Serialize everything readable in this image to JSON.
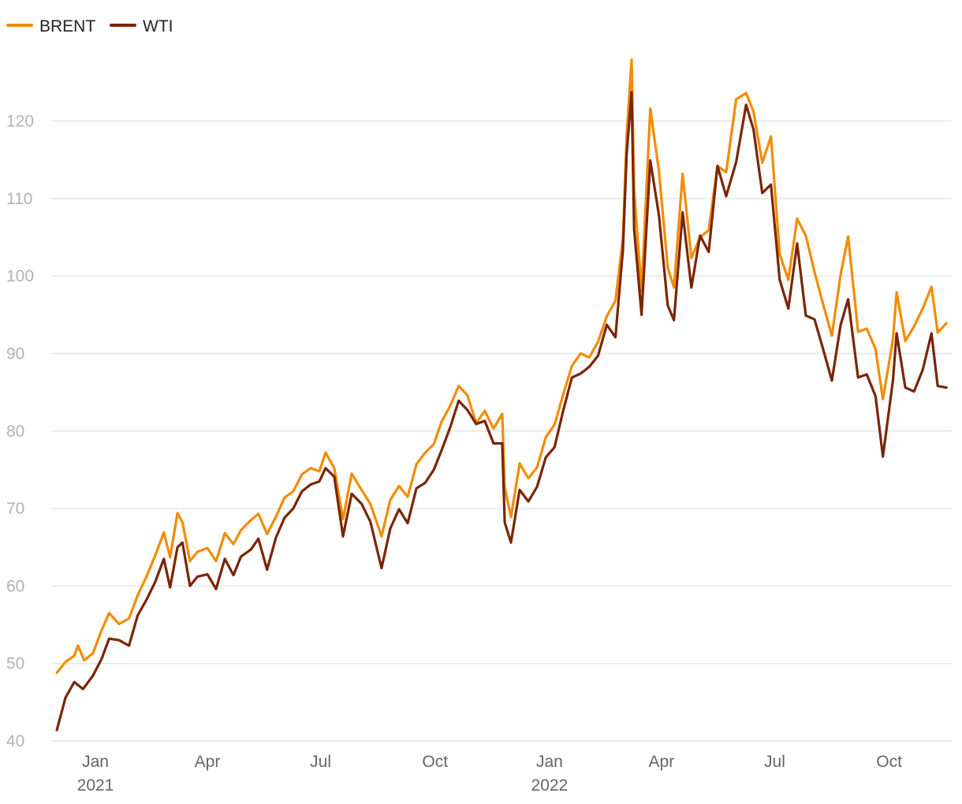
{
  "chart_data": {
    "type": "line",
    "title": "",
    "xlabel": "",
    "ylabel": "",
    "ylim": [
      40,
      128
    ],
    "yticks": [
      40,
      50,
      60,
      70,
      80,
      90,
      100,
      110,
      120
    ],
    "grid": true,
    "legend_placement": "top-left",
    "x_tick_labels": [
      {
        "date": "2021-01-01",
        "label": "Jan",
        "sublabel": "2021"
      },
      {
        "date": "2021-04-01",
        "label": "Apr",
        "sublabel": ""
      },
      {
        "date": "2021-07-01",
        "label": "Jul",
        "sublabel": ""
      },
      {
        "date": "2021-10-01",
        "label": "Oct",
        "sublabel": ""
      },
      {
        "date": "2022-01-01",
        "label": "Jan",
        "sublabel": "2022"
      },
      {
        "date": "2022-04-01",
        "label": "Apr",
        "sublabel": ""
      },
      {
        "date": "2022-07-01",
        "label": "Jul",
        "sublabel": ""
      },
      {
        "date": "2022-10-01",
        "label": "Oct",
        "sublabel": ""
      }
    ],
    "series": [
      {
        "name": "BRENT",
        "color": "#f28c00",
        "points": [
          [
            "2020-12-01",
            48.8
          ],
          [
            "2020-12-08",
            50.2
          ],
          [
            "2020-12-15",
            51.0
          ],
          [
            "2020-12-18",
            52.3
          ],
          [
            "2020-12-23",
            50.4
          ],
          [
            "2020-12-30",
            51.3
          ],
          [
            "2021-01-06",
            54.3
          ],
          [
            "2021-01-12",
            56.5
          ],
          [
            "2021-01-20",
            55.1
          ],
          [
            "2021-01-28",
            55.8
          ],
          [
            "2021-02-04",
            58.8
          ],
          [
            "2021-02-11",
            61.2
          ],
          [
            "2021-02-18",
            63.9
          ],
          [
            "2021-02-25",
            66.9
          ],
          [
            "2021-03-02",
            63.7
          ],
          [
            "2021-03-08",
            69.4
          ],
          [
            "2021-03-12",
            68.2
          ],
          [
            "2021-03-18",
            63.2
          ],
          [
            "2021-03-24",
            64.4
          ],
          [
            "2021-04-01",
            64.9
          ],
          [
            "2021-04-08",
            63.2
          ],
          [
            "2021-04-15",
            66.8
          ],
          [
            "2021-04-22",
            65.4
          ],
          [
            "2021-04-28",
            67.2
          ],
          [
            "2021-05-06",
            68.5
          ],
          [
            "2021-05-12",
            69.3
          ],
          [
            "2021-05-19",
            66.7
          ],
          [
            "2021-05-26",
            68.9
          ],
          [
            "2021-06-02",
            71.4
          ],
          [
            "2021-06-09",
            72.2
          ],
          [
            "2021-06-16",
            74.4
          ],
          [
            "2021-06-23",
            75.2
          ],
          [
            "2021-06-30",
            74.8
          ],
          [
            "2021-07-05",
            77.2
          ],
          [
            "2021-07-12",
            75.2
          ],
          [
            "2021-07-19",
            68.6
          ],
          [
            "2021-07-26",
            74.5
          ],
          [
            "2021-08-03",
            72.4
          ],
          [
            "2021-08-10",
            70.6
          ],
          [
            "2021-08-19",
            66.4
          ],
          [
            "2021-08-26",
            71.1
          ],
          [
            "2021-09-02",
            72.9
          ],
          [
            "2021-09-09",
            71.5
          ],
          [
            "2021-09-16",
            75.7
          ],
          [
            "2021-09-23",
            77.2
          ],
          [
            "2021-09-30",
            78.3
          ],
          [
            "2021-10-06",
            81.1
          ],
          [
            "2021-10-13",
            83.2
          ],
          [
            "2021-10-20",
            85.8
          ],
          [
            "2021-10-27",
            84.6
          ],
          [
            "2021-11-03",
            81.0
          ],
          [
            "2021-11-10",
            82.6
          ],
          [
            "2021-11-17",
            80.3
          ],
          [
            "2021-11-24",
            82.2
          ],
          [
            "2021-11-26",
            72.7
          ],
          [
            "2021-12-01",
            68.9
          ],
          [
            "2021-12-08",
            75.8
          ],
          [
            "2021-12-15",
            73.9
          ],
          [
            "2021-12-22",
            75.3
          ],
          [
            "2021-12-29",
            79.2
          ],
          [
            "2022-01-05",
            80.8
          ],
          [
            "2022-01-12",
            84.7
          ],
          [
            "2022-01-19",
            88.4
          ],
          [
            "2022-01-26",
            90.0
          ],
          [
            "2022-02-02",
            89.5
          ],
          [
            "2022-02-09",
            91.5
          ],
          [
            "2022-02-16",
            94.8
          ],
          [
            "2022-02-23",
            96.8
          ],
          [
            "2022-03-01",
            104.9
          ],
          [
            "2022-03-04",
            118.1
          ],
          [
            "2022-03-08",
            127.9
          ],
          [
            "2022-03-10",
            111.1
          ],
          [
            "2022-03-16",
            98.0
          ],
          [
            "2022-03-23",
            121.6
          ],
          [
            "2022-03-30",
            113.5
          ],
          [
            "2022-04-06",
            101.1
          ],
          [
            "2022-04-11",
            98.5
          ],
          [
            "2022-04-18",
            113.2
          ],
          [
            "2022-04-25",
            102.3
          ],
          [
            "2022-05-02",
            105.0
          ],
          [
            "2022-05-09",
            105.9
          ],
          [
            "2022-05-16",
            114.2
          ],
          [
            "2022-05-23",
            113.4
          ],
          [
            "2022-05-31",
            122.8
          ],
          [
            "2022-06-08",
            123.6
          ],
          [
            "2022-06-14",
            121.2
          ],
          [
            "2022-06-21",
            114.6
          ],
          [
            "2022-06-28",
            118.0
          ],
          [
            "2022-07-05",
            102.8
          ],
          [
            "2022-07-12",
            99.5
          ],
          [
            "2022-07-19",
            107.4
          ],
          [
            "2022-07-26",
            105.2
          ],
          [
            "2022-08-02",
            100.5
          ],
          [
            "2022-08-09",
            96.3
          ],
          [
            "2022-08-16",
            92.3
          ],
          [
            "2022-08-23",
            100.2
          ],
          [
            "2022-08-29",
            105.1
          ],
          [
            "2022-09-06",
            92.8
          ],
          [
            "2022-09-13",
            93.2
          ],
          [
            "2022-09-20",
            90.6
          ],
          [
            "2022-09-26",
            84.1
          ],
          [
            "2022-10-04",
            91.8
          ],
          [
            "2022-10-07",
            97.9
          ],
          [
            "2022-10-14",
            91.6
          ],
          [
            "2022-10-21",
            93.5
          ],
          [
            "2022-10-28",
            95.8
          ],
          [
            "2022-11-04",
            98.6
          ],
          [
            "2022-11-09",
            92.7
          ],
          [
            "2022-11-16",
            93.9
          ]
        ]
      },
      {
        "name": "WTI",
        "color": "#7a2505",
        "points": [
          [
            "2020-12-01",
            41.4
          ],
          [
            "2020-12-08",
            45.6
          ],
          [
            "2020-12-15",
            47.6
          ],
          [
            "2020-12-22",
            46.7
          ],
          [
            "2020-12-30",
            48.4
          ],
          [
            "2021-01-06",
            50.6
          ],
          [
            "2021-01-12",
            53.2
          ],
          [
            "2021-01-20",
            53.0
          ],
          [
            "2021-01-28",
            52.3
          ],
          [
            "2021-02-04",
            56.2
          ],
          [
            "2021-02-11",
            58.2
          ],
          [
            "2021-02-18",
            60.5
          ],
          [
            "2021-02-25",
            63.5
          ],
          [
            "2021-03-02",
            59.8
          ],
          [
            "2021-03-08",
            65.0
          ],
          [
            "2021-03-12",
            65.6
          ],
          [
            "2021-03-18",
            60.0
          ],
          [
            "2021-03-24",
            61.2
          ],
          [
            "2021-04-01",
            61.5
          ],
          [
            "2021-04-08",
            59.6
          ],
          [
            "2021-04-15",
            63.5
          ],
          [
            "2021-04-22",
            61.4
          ],
          [
            "2021-04-28",
            63.8
          ],
          [
            "2021-05-06",
            64.7
          ],
          [
            "2021-05-12",
            66.1
          ],
          [
            "2021-05-19",
            62.1
          ],
          [
            "2021-05-26",
            66.2
          ],
          [
            "2021-06-02",
            68.8
          ],
          [
            "2021-06-09",
            70.0
          ],
          [
            "2021-06-16",
            72.2
          ],
          [
            "2021-06-23",
            73.1
          ],
          [
            "2021-06-30",
            73.5
          ],
          [
            "2021-07-05",
            75.2
          ],
          [
            "2021-07-12",
            74.1
          ],
          [
            "2021-07-19",
            66.4
          ],
          [
            "2021-07-26",
            71.9
          ],
          [
            "2021-08-03",
            70.6
          ],
          [
            "2021-08-10",
            68.3
          ],
          [
            "2021-08-19",
            62.3
          ],
          [
            "2021-08-26",
            67.4
          ],
          [
            "2021-09-02",
            69.9
          ],
          [
            "2021-09-09",
            68.1
          ],
          [
            "2021-09-16",
            72.6
          ],
          [
            "2021-09-23",
            73.3
          ],
          [
            "2021-09-30",
            75.0
          ],
          [
            "2021-10-06",
            77.4
          ],
          [
            "2021-10-13",
            80.4
          ],
          [
            "2021-10-20",
            83.9
          ],
          [
            "2021-10-27",
            82.7
          ],
          [
            "2021-11-03",
            80.9
          ],
          [
            "2021-11-10",
            81.3
          ],
          [
            "2021-11-17",
            78.4
          ],
          [
            "2021-11-24",
            78.4
          ],
          [
            "2021-11-26",
            68.2
          ],
          [
            "2021-12-01",
            65.6
          ],
          [
            "2021-12-08",
            72.4
          ],
          [
            "2021-12-15",
            70.9
          ],
          [
            "2021-12-22",
            72.8
          ],
          [
            "2021-12-29",
            76.6
          ],
          [
            "2022-01-05",
            77.9
          ],
          [
            "2022-01-12",
            82.6
          ],
          [
            "2022-01-19",
            86.9
          ],
          [
            "2022-01-26",
            87.4
          ],
          [
            "2022-02-02",
            88.3
          ],
          [
            "2022-02-09",
            89.7
          ],
          [
            "2022-02-16",
            93.7
          ],
          [
            "2022-02-23",
            92.1
          ],
          [
            "2022-03-01",
            103.4
          ],
          [
            "2022-03-04",
            115.7
          ],
          [
            "2022-03-08",
            123.7
          ],
          [
            "2022-03-10",
            106.0
          ],
          [
            "2022-03-16",
            95.0
          ],
          [
            "2022-03-23",
            114.9
          ],
          [
            "2022-03-30",
            107.8
          ],
          [
            "2022-04-06",
            96.2
          ],
          [
            "2022-04-11",
            94.3
          ],
          [
            "2022-04-18",
            108.2
          ],
          [
            "2022-04-25",
            98.5
          ],
          [
            "2022-05-02",
            105.2
          ],
          [
            "2022-05-09",
            103.1
          ],
          [
            "2022-05-16",
            114.2
          ],
          [
            "2022-05-23",
            110.3
          ],
          [
            "2022-05-31",
            114.7
          ],
          [
            "2022-06-08",
            122.1
          ],
          [
            "2022-06-14",
            118.9
          ],
          [
            "2022-06-21",
            110.7
          ],
          [
            "2022-06-28",
            111.8
          ],
          [
            "2022-07-05",
            99.5
          ],
          [
            "2022-07-12",
            95.8
          ],
          [
            "2022-07-19",
            104.2
          ],
          [
            "2022-07-26",
            94.9
          ],
          [
            "2022-08-02",
            94.4
          ],
          [
            "2022-08-09",
            90.5
          ],
          [
            "2022-08-16",
            86.5
          ],
          [
            "2022-08-23",
            93.7
          ],
          [
            "2022-08-29",
            97.0
          ],
          [
            "2022-09-06",
            86.9
          ],
          [
            "2022-09-13",
            87.3
          ],
          [
            "2022-09-20",
            84.5
          ],
          [
            "2022-09-26",
            76.7
          ],
          [
            "2022-10-04",
            86.5
          ],
          [
            "2022-10-07",
            92.6
          ],
          [
            "2022-10-14",
            85.6
          ],
          [
            "2022-10-21",
            85.1
          ],
          [
            "2022-10-28",
            87.9
          ],
          [
            "2022-11-04",
            92.6
          ],
          [
            "2022-11-09",
            85.8
          ],
          [
            "2022-11-16",
            85.6
          ]
        ]
      }
    ]
  }
}
